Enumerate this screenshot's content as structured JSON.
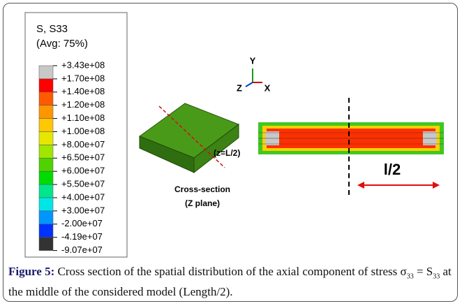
{
  "legend": {
    "title": "S, S33",
    "subtitle": "(Avg: 75%)",
    "labels": [
      "+3.43e+08",
      "+1.70e+08",
      "+1.40e+08",
      "+1.20e+08",
      "+1.10e+08",
      "+1.00e+08",
      "+8.00e+07",
      "+6.50e+07",
      "+6.00e+07",
      "+5.50e+07",
      "+4.00e+07",
      "+3.00e+07",
      "-2.00e+07",
      "-4.19e+07",
      "-9.07e+07"
    ],
    "colors": [
      "#c8c8c8",
      "#ff0000",
      "#ff5a00",
      "#ff9600",
      "#ffc800",
      "#e6e600",
      "#a0e600",
      "#50d200",
      "#00dc00",
      "#00e68c",
      "#00e6e6",
      "#0096ff",
      "#0032ff",
      "#333333"
    ]
  },
  "triad": {
    "y": "Y",
    "z": "Z",
    "x": "X"
  },
  "annotations": {
    "plane": "(z=L/2)",
    "section_line1": "Cross-section",
    "section_line2": "(Z plane)",
    "half_length": "l/2"
  },
  "caption": {
    "label": "Figure 5:",
    "segments": [
      " Cross section of the spatial distribution of the axial component of stress σ",
      "33",
      " = S",
      "33",
      " at the middle of the considered model (Length/2)."
    ]
  }
}
